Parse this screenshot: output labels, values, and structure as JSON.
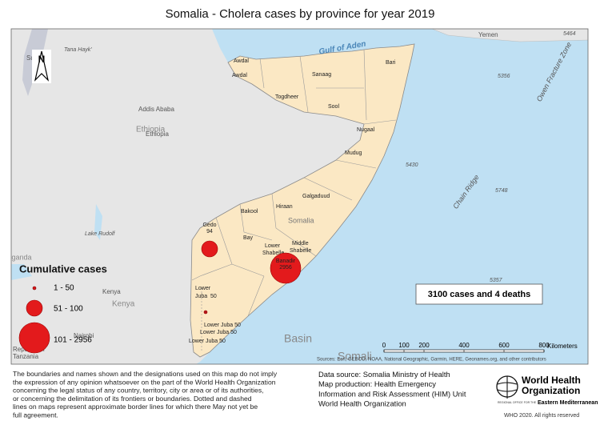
{
  "title": "Somalia - Cholera cases by province for year 2019",
  "map": {
    "north": "N",
    "labels": [
      "Gulf of Aden",
      "Yemen",
      "Awdal",
      "Awdal",
      "Sanaag",
      "Bari",
      "Togdheer",
      "Sool",
      "Nugaal",
      "Mudug",
      "Galgaduud",
      "Hiraan",
      "Somalia",
      "Bakool",
      "Bay",
      "Lower",
      "Shabelle",
      "Middle",
      "Shabelle",
      "Lower",
      "Lower Juba 50",
      "Lower Juba 50",
      "Lower Juba 50",
      "Ethiopia",
      "Ethiopia",
      "Addis Ababa",
      "Kenya",
      "Kenya",
      "Lake Rudolf",
      "Tana Hayk'",
      "Sudan",
      "Uganda",
      "Republic of",
      "Tanzania",
      "Nairobi",
      "5464",
      "5356",
      "5430",
      "5748",
      "5357",
      "Chain Ridge",
      "Owen Fracture Zone",
      "Somali",
      "Basin"
    ],
    "cases": [
      {
        "region": "Gedo",
        "value": 94
      },
      {
        "region": "Banadir",
        "value": 2956
      },
      {
        "region": "Juba",
        "value": 50
      }
    ],
    "summary": "3100 cases and 4 deaths",
    "legend": {
      "title": "Cumulative cases",
      "classes": [
        "1 - 50",
        "51 - 100",
        "101 - 2956"
      ]
    },
    "scale": {
      "ticks": [
        "0",
        "100",
        "200",
        "400",
        "600",
        "800"
      ],
      "unit": "Kilometers"
    },
    "sources": "Sources: Esri, GEBCO, NOAA, National Geographic, Garmin, HERE, Geonames.org, and other contributors"
  },
  "footer": {
    "disclaimer": [
      "The boundaries and names shown and the designations used on this map do not imply",
      "the expression of any opinion whatsoever on the part of the World Health Organization",
      "concerning the legal status of any country, territory, city or area or of its authorities,",
      "or concerning the delimitation of its frontiers or boundaries. Dotted and dashed",
      "lines on maps represent approximate border lines for which there May not yet be",
      "full agreement."
    ],
    "data_source": [
      "Data source: Somalia Ministry of Health",
      "Map production: Health Emergency",
      "Information and Risk Assessment (HIM) Unit",
      "World Health Organization"
    ],
    "logo": [
      "World Health",
      "Organization",
      "REGIONAL OFFICE FOR THE",
      "Eastern Mediterranean"
    ],
    "copyright": "WHO 2020. All rights reserved"
  }
}
